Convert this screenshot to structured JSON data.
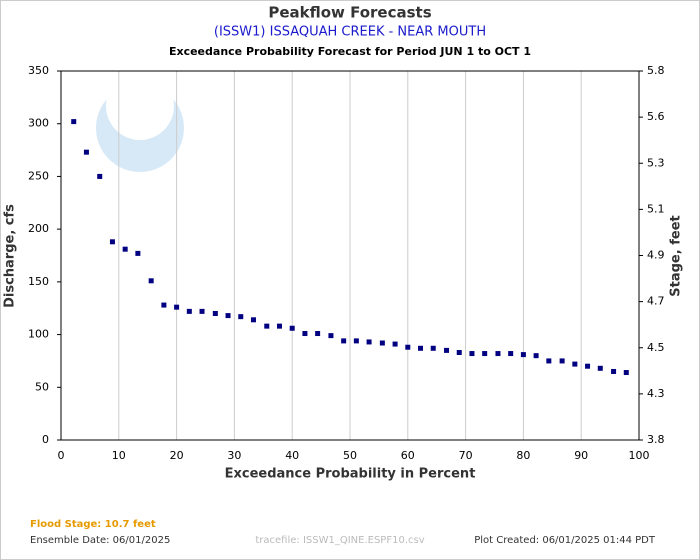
{
  "chart_data": {
    "type": "scatter",
    "title": "Peakflow Forecasts",
    "subtitle": "(ISSW1) ISSAQUAH CREEK - NEAR MOUTH",
    "description": "Exceedance Probability Forecast for Period JUN 1 to OCT 1",
    "xlabel": "Exceedance Probability in Percent",
    "ylabel": "Discharge, cfs",
    "y2label": "Stage, feet",
    "color": "#000080",
    "x": [
      2.2,
      4.4,
      6.7,
      8.9,
      11.1,
      13.3,
      15.6,
      17.8,
      20.0,
      22.2,
      24.4,
      26.7,
      28.9,
      31.1,
      33.3,
      35.6,
      37.8,
      40.0,
      42.2,
      44.4,
      46.7,
      48.9,
      51.1,
      53.3,
      55.6,
      57.8,
      60.0,
      62.2,
      64.4,
      66.7,
      68.9,
      71.1,
      73.3,
      75.6,
      77.8,
      80.0,
      82.2,
      84.4,
      86.7,
      88.9,
      91.1,
      93.3,
      95.6,
      97.8
    ],
    "values": [
      302,
      273,
      250,
      188,
      181,
      177,
      151,
      128,
      126,
      122,
      122,
      120,
      118,
      117,
      114,
      108,
      108,
      106,
      101,
      101,
      99,
      94,
      94,
      93,
      92,
      91,
      88,
      87,
      87,
      85,
      83,
      82,
      82,
      82,
      82,
      81,
      80,
      75,
      75,
      72,
      70,
      68,
      65,
      64
    ],
    "xlim": [
      0,
      100
    ],
    "xticks": [
      0,
      10,
      20,
      30,
      40,
      50,
      60,
      70,
      80,
      90,
      100
    ],
    "ylim": [
      0,
      350
    ],
    "yticks": [
      0,
      50,
      100,
      150,
      200,
      250,
      300,
      350
    ],
    "y2ticks": [
      3.8,
      4.3,
      4.5,
      4.7,
      4.9,
      5.1,
      5.3,
      5.6,
      5.8
    ],
    "grid": true,
    "footer": {
      "flood_stage": "Flood Stage: 10.7 feet",
      "ensemble_date": "Ensemble Date: 06/01/2025",
      "tracefile": "tracefile: ISSW1_QINE.ESPF10.csv",
      "created": "Plot Created: 06/01/2025 01:44 PDT"
    }
  }
}
